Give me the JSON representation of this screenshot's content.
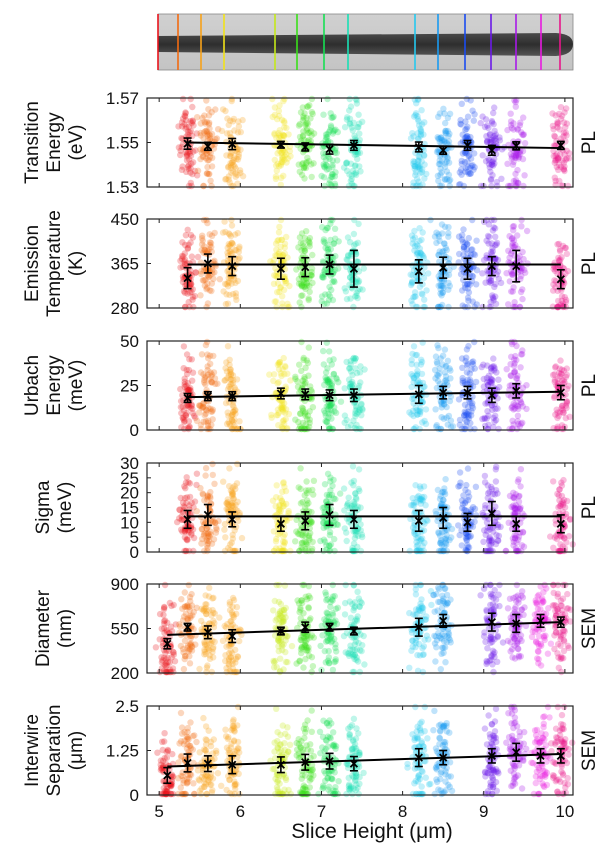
{
  "figure": {
    "xlabel_prefix": "Slice Height (",
    "xlabel_unit": "μm",
    "xlabel_suffix": ")",
    "xticks": [
      "5",
      "6",
      "7",
      "8",
      "9",
      "10"
    ]
  },
  "slice_colors": [
    "#e8141c",
    "#f26b12",
    "#f7a21a",
    "#f2e21a",
    "#c4e81a",
    "#3adf1a",
    "#16df53",
    "#1ae0b5",
    "#25c8ee",
    "#1a9af0",
    "#1a4cf0",
    "#6b1ae8",
    "#a81ae8",
    "#e81ae0",
    "#e8168a"
  ],
  "chart_data": [
    {
      "type": "scatter",
      "ylabel": [
        "Transition",
        "Energy",
        "(eV)"
      ],
      "side_label": "PL",
      "ylim": [
        1.53,
        1.57
      ],
      "yticks": [
        "1.53",
        "1.55",
        "1.57"
      ],
      "x": [
        5.35,
        5.6,
        5.9,
        6.5,
        6.8,
        7.1,
        7.4,
        8.2,
        8.5,
        8.8,
        9.1,
        9.4,
        9.95
      ],
      "color_index": [
        0,
        1,
        2,
        3,
        5,
        6,
        7,
        8,
        9,
        10,
        11,
        12,
        14
      ],
      "mean": [
        1.5495,
        1.5483,
        1.5493,
        1.549,
        1.548,
        1.547,
        1.5487,
        1.548,
        1.5465,
        1.5487,
        1.5465,
        1.5485,
        1.5487
      ],
      "err": [
        0.0025,
        0.0018,
        0.0025,
        0.0015,
        0.0018,
        0.0022,
        0.0022,
        0.0022,
        0.0018,
        0.0022,
        0.0022,
        0.0018,
        0.0018
      ],
      "fit": [
        [
          5.35,
          1.55
        ],
        [
          9.95,
          1.5475
        ]
      ]
    },
    {
      "type": "scatter",
      "ylabel": [
        "Emission",
        "Temperature",
        "(K)"
      ],
      "side_label": "PL",
      "ylim": [
        280,
        450
      ],
      "yticks": [
        "280",
        "365",
        "450"
      ],
      "x": [
        5.35,
        5.6,
        5.9,
        6.5,
        6.8,
        7.1,
        7.4,
        8.2,
        8.5,
        8.8,
        9.1,
        9.4,
        9.95
      ],
      "color_index": [
        0,
        1,
        2,
        3,
        5,
        6,
        7,
        8,
        9,
        10,
        11,
        12,
        14
      ],
      "mean": [
        337,
        365,
        360,
        355,
        358,
        363,
        355,
        350,
        357,
        355,
        360,
        360,
        335
      ],
      "err": [
        20,
        18,
        18,
        20,
        18,
        18,
        35,
        22,
        20,
        20,
        18,
        30,
        18
      ],
      "fit": [
        [
          5.35,
          363
        ],
        [
          9.95,
          363
        ]
      ]
    },
    {
      "type": "scatter",
      "ylabel": [
        "Urbach",
        "Energy",
        "(meV)"
      ],
      "side_label": "PL",
      "ylim": [
        0,
        50
      ],
      "yticks": [
        "0",
        "25",
        "50"
      ],
      "x": [
        5.35,
        5.6,
        5.9,
        6.5,
        6.8,
        7.1,
        7.4,
        8.2,
        8.5,
        8.8,
        9.1,
        9.4,
        9.95
      ],
      "color_index": [
        0,
        1,
        2,
        3,
        5,
        6,
        7,
        8,
        9,
        10,
        11,
        12,
        14
      ],
      "mean": [
        18,
        19,
        19,
        20.5,
        20,
        19.5,
        19.5,
        20,
        21,
        21,
        19.5,
        22,
        21
      ],
      "err": [
        2.5,
        2.5,
        2.5,
        3,
        3,
        3,
        3.5,
        5,
        3.5,
        3.5,
        4,
        4,
        4
      ],
      "fit": [
        [
          5.35,
          18.5
        ],
        [
          9.95,
          21.5
        ]
      ]
    },
    {
      "type": "scatter",
      "ylabel": [
        "Sigma",
        "(meV)"
      ],
      "side_label": "PL",
      "ylim": [
        0,
        30
      ],
      "yticks": [
        "0",
        "5",
        "10",
        "15",
        "20",
        "25",
        "30"
      ],
      "x": [
        5.35,
        5.6,
        5.9,
        6.5,
        6.8,
        7.1,
        7.4,
        8.2,
        8.5,
        8.8,
        9.1,
        9.4,
        9.95
      ],
      "color_index": [
        0,
        1,
        2,
        3,
        5,
        6,
        7,
        8,
        9,
        10,
        11,
        12,
        14
      ],
      "mean": [
        11,
        12.5,
        11,
        9.5,
        10.5,
        12.5,
        11,
        10.5,
        11.5,
        10,
        13,
        9.5,
        9.5
      ],
      "err": [
        3,
        3.5,
        2.5,
        2.5,
        3,
        3.5,
        3,
        3.5,
        3.5,
        3,
        4,
        2.5,
        3
      ],
      "fit": [
        [
          5.35,
          12
        ],
        [
          9.95,
          12
        ]
      ]
    },
    {
      "type": "scatter",
      "ylabel": [
        "Diameter",
        "(nm)"
      ],
      "side_label": "SEM",
      "ylim": [
        200,
        900
      ],
      "yticks": [
        "200",
        "550",
        "900"
      ],
      "x": [
        5.1,
        5.35,
        5.6,
        5.9,
        6.5,
        6.8,
        7.1,
        7.4,
        8.2,
        8.5,
        9.1,
        9.4,
        9.7,
        9.95
      ],
      "color_index": [
        0,
        1,
        2,
        2,
        4,
        5,
        6,
        7,
        8,
        9,
        11,
        12,
        13,
        14
      ],
      "mean": [
        430,
        560,
        520,
        490,
        530,
        560,
        560,
        530,
        560,
        610,
        600,
        590,
        610,
        600
      ],
      "err": [
        40,
        30,
        50,
        50,
        30,
        40,
        30,
        30,
        70,
        50,
        70,
        70,
        50,
        40
      ],
      "fit": [
        [
          5.1,
          500
        ],
        [
          9.95,
          600
        ]
      ]
    },
    {
      "type": "scatter",
      "ylabel": [
        "Interwire",
        "Separation",
        "(μm)"
      ],
      "side_label": "SEM",
      "ylim": [
        0,
        2.5
      ],
      "yticks": [
        "0",
        "1.25",
        "2.5"
      ],
      "x": [
        5.1,
        5.35,
        5.6,
        5.9,
        6.5,
        6.8,
        7.1,
        7.4,
        8.2,
        8.5,
        9.1,
        9.4,
        9.7,
        9.95
      ],
      "color_index": [
        0,
        1,
        2,
        2,
        4,
        5,
        6,
        7,
        8,
        9,
        11,
        12,
        13,
        14
      ],
      "mean": [
        0.55,
        0.9,
        0.88,
        0.85,
        0.85,
        0.92,
        0.95,
        0.88,
        1.05,
        1.05,
        1.1,
        1.2,
        1.1,
        1.1
      ],
      "err": [
        0.22,
        0.25,
        0.22,
        0.25,
        0.22,
        0.22,
        0.22,
        0.2,
        0.25,
        0.2,
        0.2,
        0.25,
        0.2,
        0.2
      ],
      "fit": [
        [
          5.1,
          0.8
        ],
        [
          9.95,
          1.15
        ]
      ]
    }
  ]
}
